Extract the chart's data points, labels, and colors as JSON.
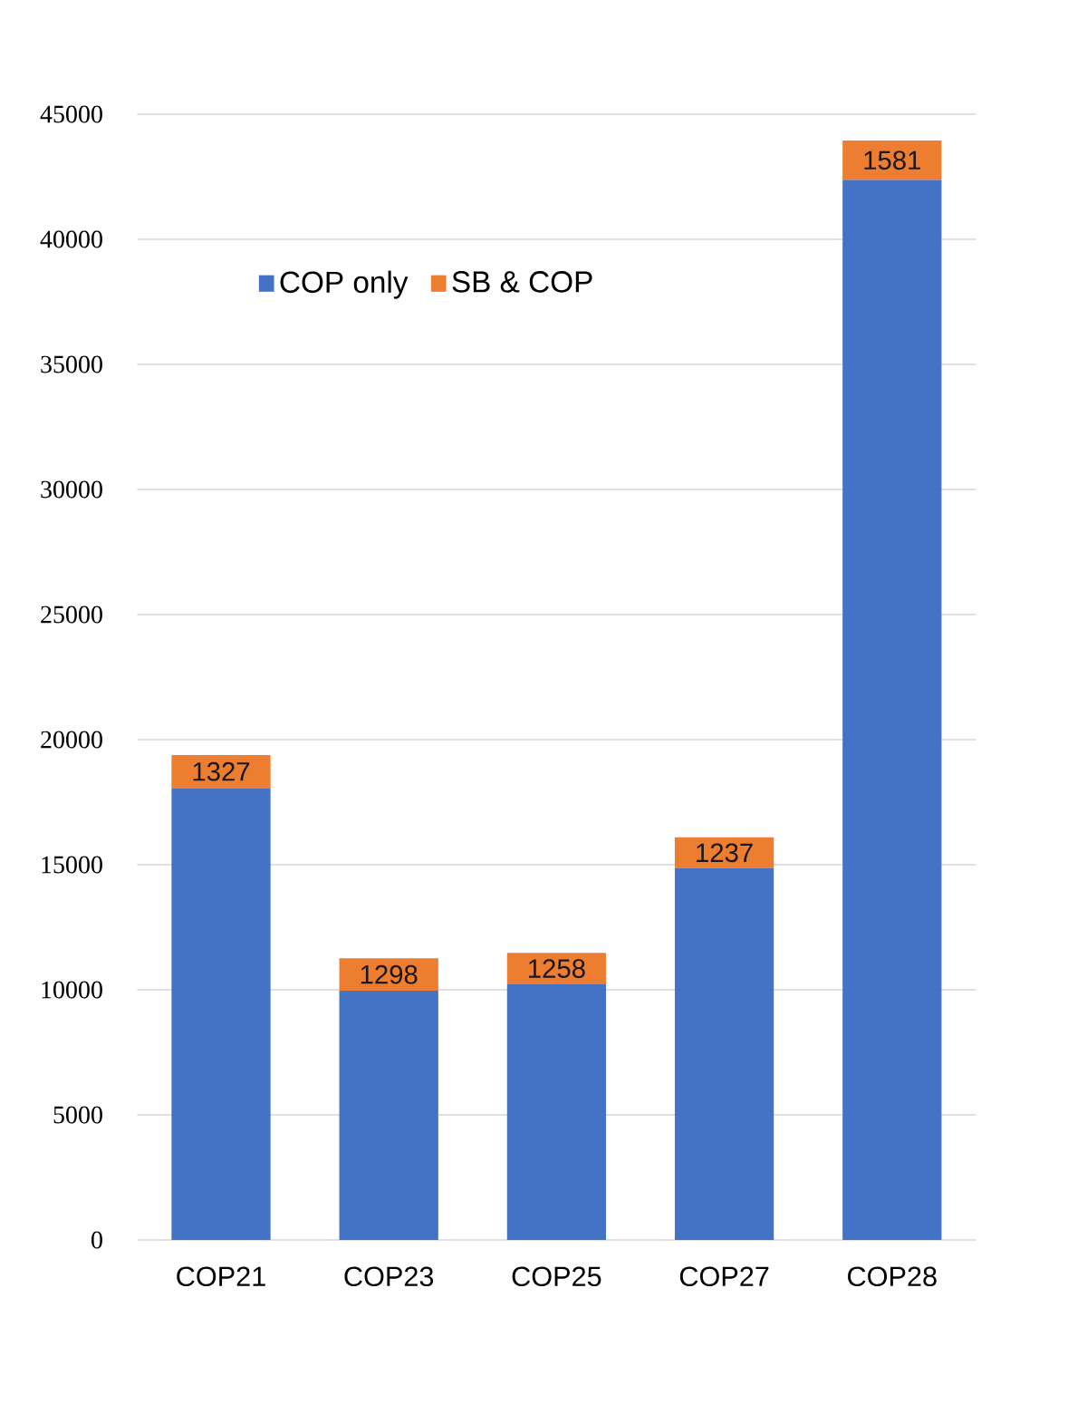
{
  "chart_data": {
    "type": "bar",
    "stacked": true,
    "categories": [
      "COP21",
      "COP23",
      "COP25",
      "COP27",
      "COP28"
    ],
    "series": [
      {
        "name": "COP only",
        "color": "#4472c4",
        "values": [
          18060,
          9960,
          10220,
          14860,
          42370
        ]
      },
      {
        "name": "SB & COP",
        "color": "#ed7d31",
        "values": [
          1327,
          1298,
          1258,
          1237,
          1581
        ],
        "value_labels": [
          "1327",
          "1298",
          "1258",
          "1237",
          "1581"
        ]
      }
    ],
    "ylim": [
      0,
      45000
    ],
    "yticks": [
      0,
      5000,
      10000,
      15000,
      20000,
      25000,
      30000,
      35000,
      40000,
      45000
    ],
    "grid": "y",
    "legend": "top left"
  }
}
